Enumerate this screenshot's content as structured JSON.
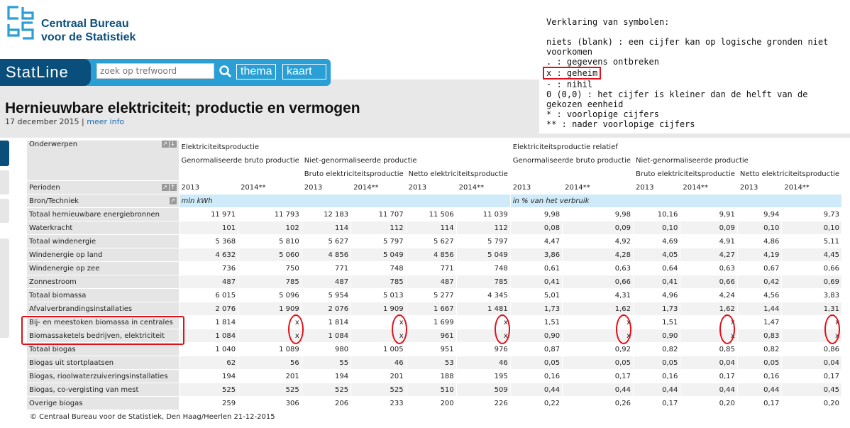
{
  "brand": {
    "name_line1": "Centraal Bureau",
    "name_line2": "voor de Statistiek",
    "color": "#0a4f7c"
  },
  "legend": {
    "title": "Verklaring van symbolen:",
    "items": [
      "niets (blank) : een cijfer kan op logische gronden niet voorkomen",
      ". : gegevens ontbreken",
      "x : geheim",
      "- : nihil",
      "0 (0,0) : het cijfer is kleiner dan de helft van de gekozen eenheid",
      "* : voorlopige cijfers",
      "** : nader voorlopige cijfers"
    ]
  },
  "nav": {
    "app": "StatLine",
    "search_placeholder": "zoek op trefwoord",
    "thema": "thema",
    "kaart": "kaart"
  },
  "page": {
    "title": "Hernieuwbare elektriciteit; productie en vermogen",
    "date": "17 december 2015",
    "separator": "|",
    "more": "meer info"
  },
  "table": {
    "onderwerpen": "Onderwerpen",
    "perioden": "Perioden",
    "bron": "Bron/Techniek",
    "g1": "Elektriciteitsproductie",
    "g2": "Elektriciteitsproductie relatief",
    "sub_gen": "Genormaliseerde bruto productie",
    "sub_niet": "Niet-genormaliseerde productie",
    "bruto": "Bruto elektriciteitsproductie",
    "netto": "Netto elektriciteitsproductie",
    "periods": [
      "2013",
      "2014**",
      "2013",
      "2014**",
      "2013",
      "2014**",
      "2013",
      "2014**",
      "2013",
      "2014**",
      "2013",
      "2014**"
    ],
    "unit1": "mln kWh",
    "unit2": "in % van het verbruik",
    "rows": [
      {
        "label": "Totaal hernieuwbare energiebronnen",
        "v": [
          "11 971",
          "11 793",
          "12 183",
          "11 707",
          "11 506",
          "11 039",
          "9,98",
          "9,98",
          "10,16",
          "9,91",
          "9,94",
          "9,73"
        ]
      },
      {
        "label": "Waterkracht",
        "v": [
          "101",
          "102",
          "114",
          "112",
          "114",
          "112",
          "0,08",
          "0,09",
          "0,10",
          "0,09",
          "0,10",
          "0,10"
        ]
      },
      {
        "label": "Totaal windenergie",
        "v": [
          "5 368",
          "5 810",
          "5 627",
          "5 797",
          "5 627",
          "5 797",
          "4,47",
          "4,92",
          "4,69",
          "4,91",
          "4,86",
          "5,11"
        ]
      },
      {
        "label": "Windenergie op land",
        "v": [
          "4 632",
          "5 060",
          "4 856",
          "5 049",
          "4 856",
          "5 049",
          "3,86",
          "4,28",
          "4,05",
          "4,27",
          "4,19",
          "4,45"
        ]
      },
      {
        "label": "Windenergie op zee",
        "v": [
          "736",
          "750",
          "771",
          "748",
          "771",
          "748",
          "0,61",
          "0,63",
          "0,64",
          "0,63",
          "0,67",
          "0,66"
        ]
      },
      {
        "label": "Zonnestroom",
        "v": [
          "487",
          "785",
          "487",
          "785",
          "487",
          "785",
          "0,41",
          "0,66",
          "0,41",
          "0,66",
          "0,42",
          "0,69"
        ]
      },
      {
        "label": "Totaal biomassa",
        "v": [
          "6 015",
          "5 096",
          "5 954",
          "5 013",
          "5 277",
          "4 345",
          "5,01",
          "4,31",
          "4,96",
          "4,24",
          "4,56",
          "3,83"
        ]
      },
      {
        "label": "Afvalverbrandingsinstallaties",
        "v": [
          "2 076",
          "1 909",
          "2 076",
          "1 909",
          "1 667",
          "1 481",
          "1,73",
          "1,62",
          "1,73",
          "1,62",
          "1,44",
          "1,31"
        ]
      },
      {
        "label": "Bij- en meestoken biomassa in centrales",
        "v": [
          "1 814",
          "x",
          "1 814",
          "x",
          "1 699",
          "x",
          "1,51",
          "x",
          "1,51",
          "x",
          "1,47",
          "x"
        ]
      },
      {
        "label": "Biomassaketels bedrijven, elektriciteit",
        "v": [
          "1 084",
          "x",
          "1 084",
          "x",
          "961",
          "x",
          "0,90",
          "x",
          "0,90",
          "x",
          "0,83",
          "x"
        ]
      },
      {
        "label": "Totaal biogas",
        "v": [
          "1 040",
          "1 089",
          "980",
          "1 005",
          "951",
          "976",
          "0,87",
          "0,92",
          "0,82",
          "0,85",
          "0,82",
          "0,86"
        ]
      },
      {
        "label": "Biogas uit stortplaatsen",
        "v": [
          "62",
          "56",
          "55",
          "46",
          "53",
          "46",
          "0,05",
          "0,05",
          "0,05",
          "0,04",
          "0,05",
          "0,04"
        ]
      },
      {
        "label": "Biogas, rioolwaterzuiveringsinstallaties",
        "v": [
          "194",
          "201",
          "194",
          "201",
          "188",
          "195",
          "0,16",
          "0,17",
          "0,16",
          "0,17",
          "0,16",
          "0,17"
        ]
      },
      {
        "label": "Biogas, co-vergisting van mest",
        "v": [
          "525",
          "525",
          "525",
          "525",
          "510",
          "509",
          "0,44",
          "0,44",
          "0,44",
          "0,44",
          "0,44",
          "0,45"
        ]
      },
      {
        "label": "Overige biogas",
        "v": [
          "259",
          "306",
          "206",
          "233",
          "200",
          "226",
          "0,22",
          "0,26",
          "0,17",
          "0,20",
          "0,17",
          "0,20"
        ]
      }
    ]
  },
  "footer": "© Centraal Bureau voor de Statistiek, Den Haag/Heerlen 21-12-2015"
}
